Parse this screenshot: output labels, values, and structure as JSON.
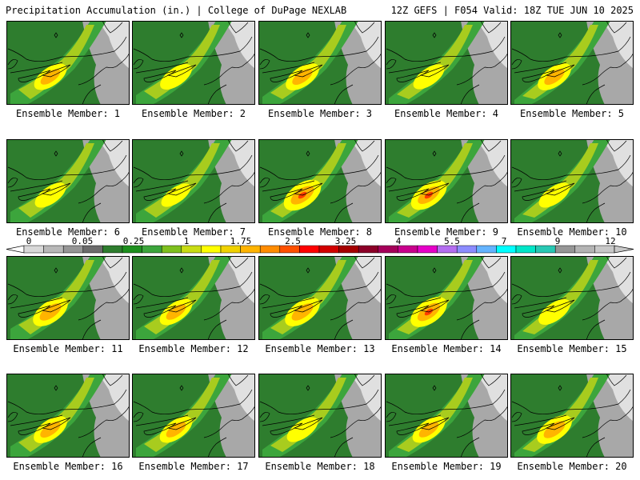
{
  "header": {
    "left": "Precipitation Accumulation (in.) | College of DuPage NEXLAB",
    "right": "12Z GEFS | F054 Valid: 18Z TUE JUN 10 2025"
  },
  "members": [
    {
      "label": "Ensemble Member: 1",
      "intensity": 0.55
    },
    {
      "label": "Ensemble Member: 2",
      "intensity": 0.5
    },
    {
      "label": "Ensemble Member: 3",
      "intensity": 0.6
    },
    {
      "label": "Ensemble Member: 4",
      "intensity": 0.45
    },
    {
      "label": "Ensemble Member: 5",
      "intensity": 0.6
    },
    {
      "label": "Ensemble Member: 6",
      "intensity": 0.45
    },
    {
      "label": "Ensemble Member: 7",
      "intensity": 0.35
    },
    {
      "label": "Ensemble Member: 8",
      "intensity": 0.85
    },
    {
      "label": "Ensemble Member: 9",
      "intensity": 0.75
    },
    {
      "label": "Ensemble Member: 10",
      "intensity": 0.45
    },
    {
      "label": "Ensemble Member: 11",
      "intensity": 0.7
    },
    {
      "label": "Ensemble Member: 12",
      "intensity": 0.55
    },
    {
      "label": "Ensemble Member: 13",
      "intensity": 0.7
    },
    {
      "label": "Ensemble Member: 14",
      "intensity": 0.8
    },
    {
      "label": "Ensemble Member: 15",
      "intensity": 0.5
    },
    {
      "label": "Ensemble Member: 16",
      "intensity": 0.6
    },
    {
      "label": "Ensemble Member: 17",
      "intensity": 0.55
    },
    {
      "label": "Ensemble Member: 18",
      "intensity": 0.45
    },
    {
      "label": "Ensemble Member: 19",
      "intensity": 0.55
    },
    {
      "label": "Ensemble Member: 20",
      "intensity": 0.7
    }
  ],
  "colorbar": {
    "ticks": [
      "0",
      "0.05",
      "0.25",
      "1",
      "1.75",
      "2.5",
      "3.25",
      "4",
      "5.5",
      "7",
      "9",
      "12"
    ],
    "colors": [
      "#d8d8d8",
      "#b8b8b8",
      "#969696",
      "#6c6c6c",
      "#2e7d2e",
      "#1e8f1e",
      "#3ca53c",
      "#7ec01e",
      "#c8dc14",
      "#ffff00",
      "#f0d200",
      "#ffb400",
      "#ff8c00",
      "#ff5000",
      "#ff0000",
      "#d20000",
      "#a50000",
      "#8c0028",
      "#a5005a",
      "#c8008c",
      "#e600c8",
      "#b46ef0",
      "#8c8cff",
      "#64b4ff",
      "#00ffff",
      "#00e6c8",
      "#28c8b4",
      "#969696",
      "#b4b4b4",
      "#c8c8c8"
    ]
  }
}
